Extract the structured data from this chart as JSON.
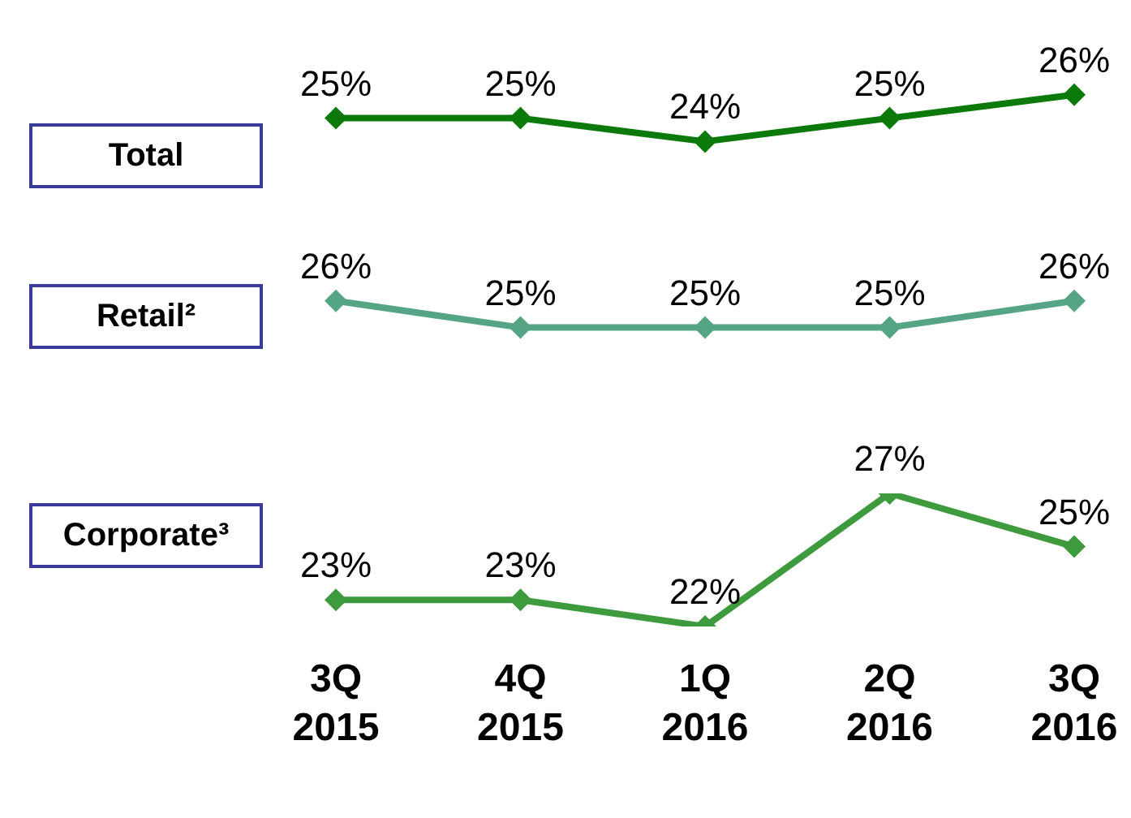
{
  "chart_data": [
    {
      "type": "line",
      "categories": [
        null,
        null,
        null,
        null,
        null
      ],
      "tick_labels": false,
      "marker": "diamond",
      "line_style": "solid",
      "series": [
        {
          "name": "Total",
          "color": "#0b7a0b",
          "values": [
            25,
            25,
            24,
            25,
            26
          ],
          "value_labels": [
            "25%",
            "25%",
            "24%",
            "25%",
            "26%"
          ]
        }
      ]
    },
    {
      "type": "line",
      "categories": [
        null,
        null,
        null,
        null,
        null
      ],
      "tick_labels": false,
      "marker": "diamond",
      "line_style": "solid",
      "series": [
        {
          "name": "Retail²",
          "color": "#55a585",
          "values": [
            26,
            25,
            25,
            25,
            26
          ],
          "value_labels": [
            "26%",
            "25%",
            "25%",
            "25%",
            "26%"
          ]
        }
      ]
    },
    {
      "type": "line",
      "categories": [
        "3Q 2015",
        "4Q 2015",
        "1Q 2016",
        "2Q 2016",
        "3Q 2016"
      ],
      "tick_labels": "x",
      "marker": "diamond",
      "line_style": "solid",
      "series": [
        {
          "name": "Corporate³",
          "color": "#3d9b3d",
          "values": [
            23,
            23,
            22,
            27,
            25
          ],
          "value_labels": [
            "23%",
            "23%",
            "22%",
            "27%",
            "25%"
          ]
        }
      ]
    }
  ]
}
